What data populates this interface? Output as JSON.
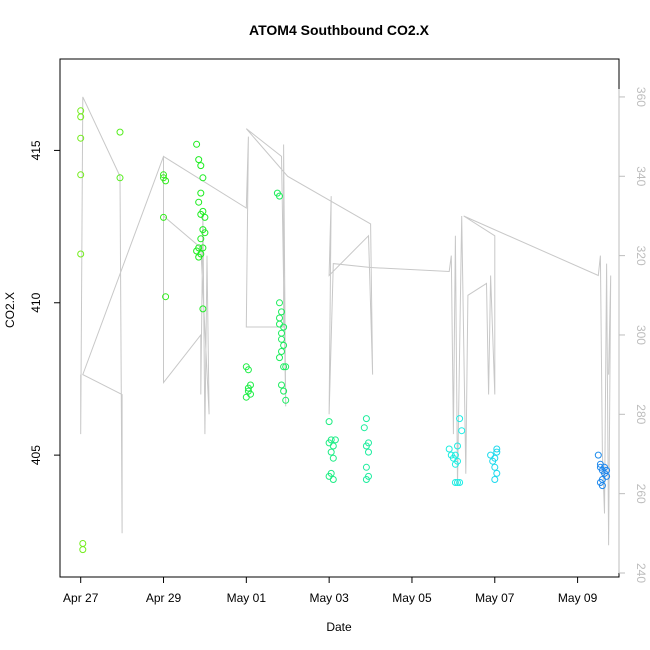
{
  "chart_data": {
    "type": "scatter",
    "title": "ATOM4 Southbound CO2.X",
    "xlabel": "Date",
    "ylabel": "CO2.X",
    "x_ticks": [
      {
        "label": "Apr 27",
        "day": 0
      },
      {
        "label": "Apr 29",
        "day": 2
      },
      {
        "label": "May 01",
        "day": 4
      },
      {
        "label": "May 03",
        "day": 6
      },
      {
        "label": "May 05",
        "day": 8
      },
      {
        "label": "May 07",
        "day": 10
      },
      {
        "label": "May 09",
        "day": 12
      }
    ],
    "xlim": [
      -0.5,
      13.0
    ],
    "ylim": [
      401.0,
      418.0
    ],
    "y_ticks": [
      405,
      410,
      415
    ],
    "y2_ticks": [
      240,
      260,
      280,
      300,
      320,
      340,
      360
    ],
    "y2lim": [
      240.0,
      362.0
    ],
    "grid": false,
    "series": [
      {
        "name": "CO2.X",
        "kind": "points",
        "points": [
          [
            0.0,
            416.3
          ],
          [
            0.0,
            416.1
          ],
          [
            0.0,
            415.4
          ],
          [
            0.0,
            414.2
          ],
          [
            0.0,
            411.6
          ],
          [
            0.05,
            402.1
          ],
          [
            0.05,
            401.9
          ],
          [
            0.95,
            415.6
          ],
          [
            0.95,
            414.1
          ],
          [
            2.0,
            414.2
          ],
          [
            2.05,
            414.0
          ],
          [
            2.0,
            412.8
          ],
          [
            2.05,
            410.2
          ],
          [
            2.0,
            414.1
          ],
          [
            2.8,
            415.2
          ],
          [
            2.85,
            414.7
          ],
          [
            2.9,
            414.5
          ],
          [
            2.95,
            414.1
          ],
          [
            2.9,
            413.6
          ],
          [
            2.85,
            413.3
          ],
          [
            2.95,
            413.0
          ],
          [
            3.0,
            412.8
          ],
          [
            2.95,
            412.4
          ],
          [
            2.9,
            412.1
          ],
          [
            2.85,
            411.8
          ],
          [
            2.8,
            411.7
          ],
          [
            2.85,
            411.5
          ],
          [
            2.9,
            411.6
          ],
          [
            2.95,
            411.8
          ],
          [
            3.0,
            412.3
          ],
          [
            2.95,
            409.8
          ],
          [
            2.9,
            412.9
          ],
          [
            4.0,
            407.9
          ],
          [
            4.05,
            407.8
          ],
          [
            4.1,
            407.3
          ],
          [
            4.05,
            407.1
          ],
          [
            4.0,
            406.9
          ],
          [
            4.1,
            407.0
          ],
          [
            4.05,
            407.2
          ],
          [
            4.75,
            413.6
          ],
          [
            4.8,
            413.5
          ],
          [
            4.8,
            410.0
          ],
          [
            4.85,
            409.7
          ],
          [
            4.8,
            409.3
          ],
          [
            4.85,
            409.0
          ],
          [
            4.9,
            408.6
          ],
          [
            4.85,
            408.4
          ],
          [
            4.8,
            408.2
          ],
          [
            4.9,
            407.9
          ],
          [
            4.95,
            407.9
          ],
          [
            4.85,
            407.3
          ],
          [
            4.9,
            407.1
          ],
          [
            4.95,
            406.8
          ],
          [
            4.85,
            408.8
          ],
          [
            4.9,
            409.2
          ],
          [
            4.8,
            409.5
          ],
          [
            6.0,
            406.1
          ],
          [
            6.05,
            405.5
          ],
          [
            6.1,
            405.3
          ],
          [
            6.05,
            405.1
          ],
          [
            6.1,
            404.9
          ],
          [
            6.0,
            405.4
          ],
          [
            6.05,
            404.4
          ],
          [
            6.1,
            404.2
          ],
          [
            6.0,
            404.3
          ],
          [
            6.15,
            405.5
          ],
          [
            6.85,
            405.9
          ],
          [
            6.9,
            406.2
          ],
          [
            6.95,
            405.4
          ],
          [
            6.9,
            405.3
          ],
          [
            6.95,
            405.1
          ],
          [
            6.9,
            404.6
          ],
          [
            6.95,
            404.3
          ],
          [
            6.9,
            404.2
          ],
          [
            8.9,
            405.2
          ],
          [
            8.95,
            405.0
          ],
          [
            9.0,
            404.9
          ],
          [
            9.05,
            404.7
          ],
          [
            9.1,
            405.3
          ],
          [
            9.05,
            405.0
          ],
          [
            9.1,
            404.8
          ],
          [
            9.15,
            406.2
          ],
          [
            9.2,
            405.8
          ],
          [
            9.05,
            404.1
          ],
          [
            9.1,
            404.1
          ],
          [
            9.15,
            404.1
          ],
          [
            9.9,
            405.0
          ],
          [
            9.95,
            404.8
          ],
          [
            10.0,
            404.6
          ],
          [
            10.05,
            405.1
          ],
          [
            10.0,
            404.9
          ],
          [
            10.05,
            404.4
          ],
          [
            10.0,
            404.2
          ],
          [
            10.05,
            405.2
          ],
          [
            12.5,
            405.0
          ],
          [
            12.55,
            404.6
          ],
          [
            12.6,
            404.5
          ],
          [
            12.65,
            404.4
          ],
          [
            12.7,
            404.3
          ],
          [
            12.55,
            404.1
          ],
          [
            12.6,
            404.2
          ],
          [
            12.65,
            404.6
          ],
          [
            12.7,
            404.5
          ],
          [
            12.6,
            404.0
          ],
          [
            12.55,
            404.7
          ]
        ]
      },
      {
        "name": "right-axis line",
        "kind": "line",
        "points": [
          [
            0.0,
            290
          ],
          [
            0.0,
            275
          ],
          [
            0.05,
            360
          ],
          [
            0.95,
            340
          ],
          [
            1.0,
            250
          ],
          [
            1.0,
            285
          ],
          [
            0.05,
            290
          ],
          [
            2.0,
            345
          ],
          [
            2.0,
            288
          ],
          [
            2.9,
            300
          ],
          [
            2.9,
            285
          ],
          [
            2.95,
            330
          ],
          [
            3.0,
            275
          ],
          [
            3.05,
            320
          ],
          [
            3.1,
            280
          ],
          [
            2.9,
            322
          ],
          [
            2.0,
            330
          ],
          [
            2.0,
            345
          ],
          [
            4.0,
            332
          ],
          [
            4.05,
            350
          ],
          [
            4.0,
            302
          ],
          [
            4.9,
            302
          ],
          [
            4.9,
            348
          ],
          [
            4.95,
            282
          ],
          [
            4.85,
            345
          ],
          [
            4.0,
            352
          ],
          [
            5.0,
            340
          ],
          [
            5.0,
            340
          ],
          [
            7.0,
            328
          ],
          [
            7.05,
            290
          ],
          [
            6.95,
            325
          ],
          [
            6.0,
            315
          ],
          [
            6.05,
            335
          ],
          [
            6.0,
            280
          ],
          [
            6.1,
            318
          ],
          [
            7.0,
            317
          ],
          [
            8.9,
            316
          ],
          [
            8.95,
            320
          ],
          [
            9.0,
            275
          ],
          [
            9.05,
            325
          ],
          [
            9.1,
            262
          ],
          [
            9.2,
            330
          ],
          [
            9.3,
            265
          ],
          [
            9.35,
            310
          ],
          [
            9.8,
            313
          ],
          [
            9.85,
            285
          ],
          [
            9.9,
            315
          ],
          [
            10.0,
            285
          ],
          [
            10.0,
            325
          ],
          [
            9.25,
            330
          ],
          [
            12.5,
            315
          ],
          [
            12.55,
            320
          ],
          [
            12.6,
            270
          ],
          [
            12.65,
            255
          ],
          [
            12.7,
            318
          ],
          [
            12.75,
            247
          ],
          [
            12.8,
            315
          ],
          [
            12.75,
            290
          ]
        ]
      }
    ]
  }
}
